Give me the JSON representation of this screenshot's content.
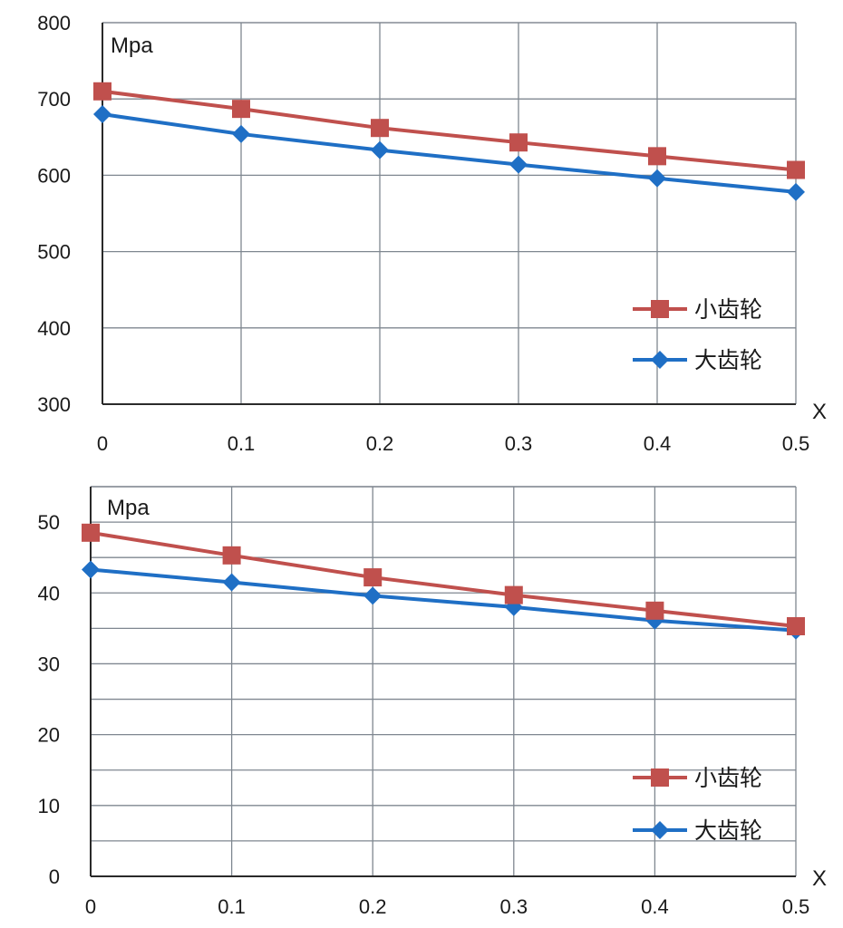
{
  "chart_data": [
    {
      "type": "line",
      "ylabel": "Mpa",
      "xlabel": "X",
      "x": [
        0,
        0.1,
        0.2,
        0.3,
        0.4,
        0.5
      ],
      "x_tick_labels": [
        "0",
        "0.1",
        "0.2",
        "0.3",
        "0.4",
        "0.5"
      ],
      "ylim": [
        300,
        800
      ],
      "y_ticks": [
        300,
        400,
        500,
        600,
        700,
        800
      ],
      "y_tick_labels": [
        "300",
        "400",
        "500",
        "600",
        "700",
        "800"
      ],
      "grid": true,
      "legend_position": "bottom-right",
      "series": [
        {
          "name": "小齿轮",
          "marker": "square",
          "color": "#c0504d",
          "values": [
            710,
            687,
            662,
            643,
            625,
            607
          ]
        },
        {
          "name": "大齿轮",
          "marker": "diamond",
          "color": "#1f6fc5",
          "values": [
            680,
            654,
            633,
            614,
            596,
            578
          ]
        }
      ]
    },
    {
      "type": "line",
      "ylabel": "Mpa",
      "xlabel": "X",
      "x": [
        0,
        0.1,
        0.2,
        0.3,
        0.4,
        0.5
      ],
      "x_tick_labels": [
        "0",
        "0.1",
        "0.2",
        "0.3",
        "0.4",
        "0.5"
      ],
      "ylim": [
        0,
        55
      ],
      "y_ticks": [
        0,
        10,
        20,
        30,
        40,
        50
      ],
      "y_tick_labels": [
        "0",
        "10",
        "20",
        "30",
        "40",
        "50"
      ],
      "grid": true,
      "legend_position": "bottom-right",
      "series": [
        {
          "name": "小齿轮",
          "marker": "square",
          "color": "#c0504d",
          "values": [
            48.5,
            45.3,
            42.2,
            39.7,
            37.5,
            35.3
          ]
        },
        {
          "name": "大齿轮",
          "marker": "diamond",
          "color": "#1f6fc5",
          "values": [
            43.3,
            41.5,
            39.6,
            38.0,
            36.1,
            34.7
          ]
        }
      ]
    }
  ]
}
